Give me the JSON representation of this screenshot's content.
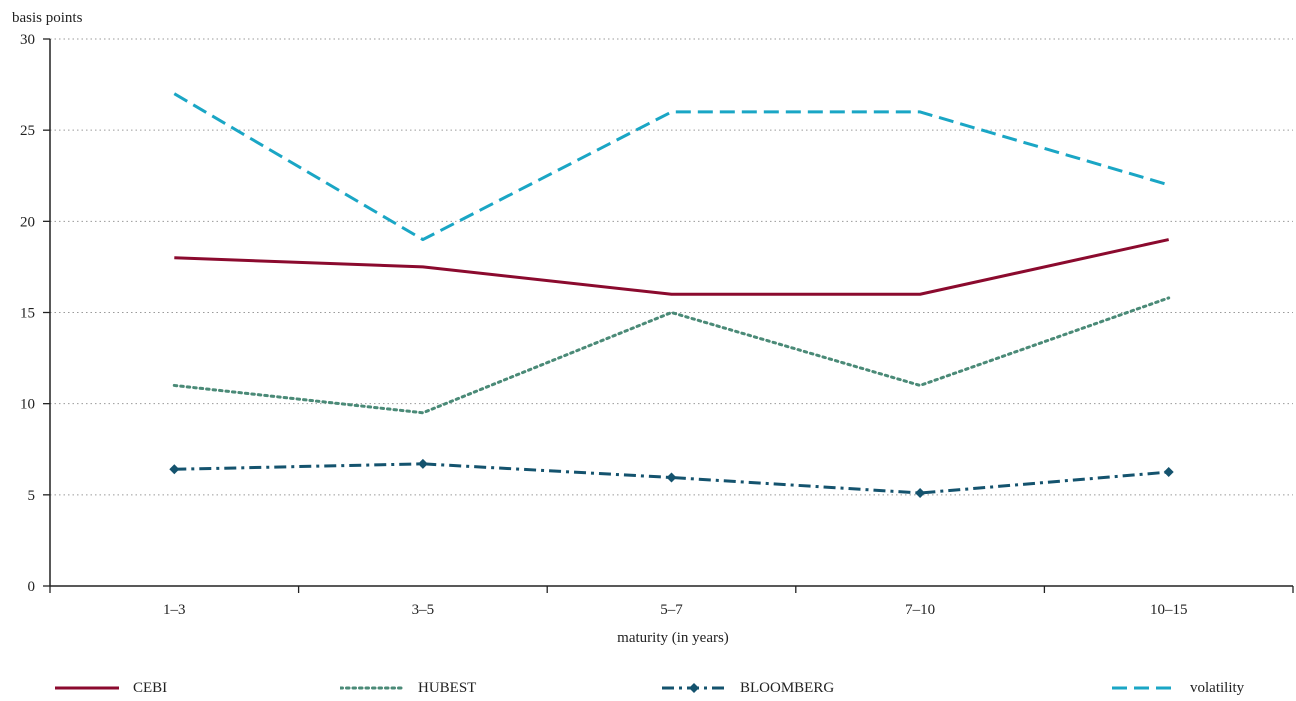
{
  "chart_data": {
    "type": "line",
    "ylabel": "basis points",
    "xlabel": "maturity (in years)",
    "ylim": [
      0,
      30
    ],
    "yticks": [
      0,
      5,
      10,
      15,
      20,
      25,
      30
    ],
    "categories": [
      "1–3",
      "3–5",
      "5–7",
      "7–10",
      "10–15"
    ],
    "grid": "horizontal dotted",
    "legend_position": "bottom",
    "series": [
      {
        "name": "CEBI",
        "values": [
          18,
          17.5,
          16,
          16,
          19
        ],
        "color": "#8b0a2e",
        "style": "solid",
        "marker": "none"
      },
      {
        "name": "HUBEST",
        "values": [
          11,
          9.5,
          15,
          11,
          15.8
        ],
        "color": "#4a8a77",
        "style": "dotted",
        "marker": "none"
      },
      {
        "name": "BLOOMBERG",
        "values": [
          6.4,
          6.7,
          5.95,
          5.1,
          6.25
        ],
        "color": "#14536e",
        "style": "dashdot",
        "marker": "diamond"
      },
      {
        "name": "volatility",
        "values": [
          27,
          19,
          26,
          26,
          22
        ],
        "color": "#1aa6c5",
        "style": "dashed",
        "marker": "none"
      }
    ]
  }
}
